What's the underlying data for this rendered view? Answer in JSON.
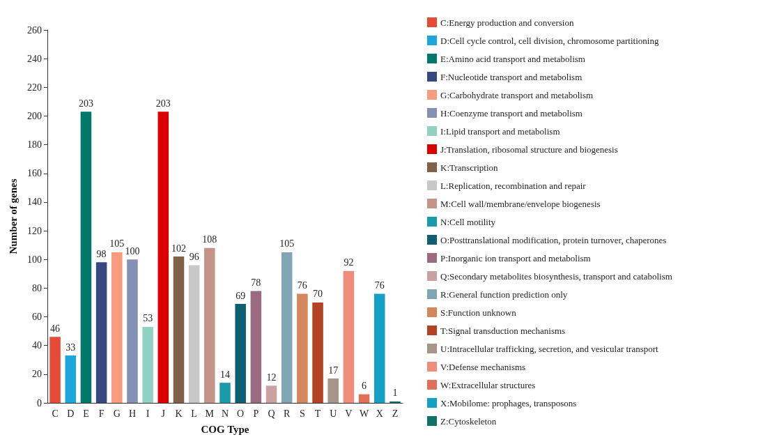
{
  "chart_data": {
    "type": "bar",
    "xlabel": "COG Type",
    "ylabel": "Number of genes",
    "categories": [
      "C",
      "D",
      "E",
      "F",
      "G",
      "H",
      "I",
      "J",
      "K",
      "L",
      "M",
      "N",
      "O",
      "P",
      "Q",
      "R",
      "S",
      "T",
      "U",
      "V",
      "W",
      "X",
      "Z"
    ],
    "series": [
      {
        "name": "C:Energy production and conversion",
        "color": "#e64b35",
        "values": [
          46,
          null,
          null,
          null,
          null,
          null,
          null,
          null,
          null,
          null,
          null,
          null,
          null,
          null,
          null,
          null,
          null,
          null,
          null,
          null,
          null,
          null,
          null
        ]
      },
      {
        "name": "D:Cell cycle control, cell division, chromosome partitioning",
        "color": "#1ba7d9",
        "values": [
          null,
          33,
          null,
          null,
          null,
          null,
          null,
          null,
          null,
          null,
          null,
          null,
          null,
          null,
          null,
          null,
          null,
          null,
          null,
          null,
          null,
          null,
          null
        ]
      },
      {
        "name": "E:Amino acid transport and metabolism",
        "color": "#00796b",
        "values": [
          null,
          null,
          203,
          null,
          null,
          null,
          null,
          null,
          null,
          null,
          null,
          null,
          null,
          null,
          null,
          null,
          null,
          null,
          null,
          null,
          null,
          null,
          null
        ]
      },
      {
        "name": "F:Nucleotide transport and metabolism",
        "color": "#34497d",
        "values": [
          null,
          null,
          null,
          98,
          null,
          null,
          null,
          null,
          null,
          null,
          null,
          null,
          null,
          null,
          null,
          null,
          null,
          null,
          null,
          null,
          null,
          null,
          null
        ]
      },
      {
        "name": "G:Carbohydrate transport and metabolism",
        "color": "#f99b7d",
        "values": [
          null,
          null,
          null,
          null,
          105,
          null,
          null,
          null,
          null,
          null,
          null,
          null,
          null,
          null,
          null,
          null,
          null,
          null,
          null,
          null,
          null,
          null,
          null
        ]
      },
      {
        "name": "H:Coenzyme transport and metabolism",
        "color": "#8491b4",
        "values": [
          null,
          null,
          null,
          null,
          null,
          100,
          null,
          null,
          null,
          null,
          null,
          null,
          null,
          null,
          null,
          null,
          null,
          null,
          null,
          null,
          null,
          null,
          null
        ]
      },
      {
        "name": "I:Lipid transport and metabolism",
        "color": "#91d1c2",
        "values": [
          null,
          null,
          null,
          null,
          null,
          null,
          53,
          null,
          null,
          null,
          null,
          null,
          null,
          null,
          null,
          null,
          null,
          null,
          null,
          null,
          null,
          null,
          null
        ]
      },
      {
        "name": "J:Translation, ribosomal structure and biogenesis",
        "color": "#dc0000",
        "values": [
          null,
          null,
          null,
          null,
          null,
          null,
          null,
          203,
          null,
          null,
          null,
          null,
          null,
          null,
          null,
          null,
          null,
          null,
          null,
          null,
          null,
          null,
          null
        ]
      },
      {
        "name": "K:Transcription",
        "color": "#7e6148",
        "values": [
          null,
          null,
          null,
          null,
          null,
          null,
          null,
          null,
          102,
          null,
          null,
          null,
          null,
          null,
          null,
          null,
          null,
          null,
          null,
          null,
          null,
          null,
          null
        ]
      },
      {
        "name": "L:Replication, recombination and repair",
        "color": "#c8c8c8",
        "values": [
          null,
          null,
          null,
          null,
          null,
          null,
          null,
          null,
          null,
          96,
          null,
          null,
          null,
          null,
          null,
          null,
          null,
          null,
          null,
          null,
          null,
          null,
          null
        ]
      },
      {
        "name": "M:Cell wall/membrane/envelope biogenesis",
        "color": "#c49488",
        "values": [
          null,
          null,
          null,
          null,
          null,
          null,
          null,
          null,
          null,
          null,
          108,
          null,
          null,
          null,
          null,
          null,
          null,
          null,
          null,
          null,
          null,
          null,
          null
        ]
      },
      {
        "name": "N:Cell motility",
        "color": "#1a9bab",
        "values": [
          null,
          null,
          null,
          null,
          null,
          null,
          null,
          null,
          null,
          null,
          null,
          14,
          null,
          null,
          null,
          null,
          null,
          null,
          null,
          null,
          null,
          null,
          null
        ]
      },
      {
        "name": "O:Posttranslational modification, protein turnover, chaperones",
        "color": "#0e5f73",
        "values": [
          null,
          null,
          null,
          null,
          null,
          null,
          null,
          null,
          null,
          null,
          null,
          null,
          69,
          null,
          null,
          null,
          null,
          null,
          null,
          null,
          null,
          null,
          null
        ]
      },
      {
        "name": "P:Inorganic ion transport and metabolism",
        "color": "#9a6b80",
        "values": [
          null,
          null,
          null,
          null,
          null,
          null,
          null,
          null,
          null,
          null,
          null,
          null,
          null,
          78,
          null,
          null,
          null,
          null,
          null,
          null,
          null,
          null,
          null
        ]
      },
      {
        "name": "Q:Secondary metabolites biosynthesis, transport and catabolism",
        "color": "#c9a1a1",
        "values": [
          null,
          null,
          null,
          null,
          null,
          null,
          null,
          null,
          null,
          null,
          null,
          null,
          null,
          null,
          12,
          null,
          null,
          null,
          null,
          null,
          null,
          null,
          null
        ]
      },
      {
        "name": "R:General function prediction only",
        "color": "#80a5b5",
        "values": [
          null,
          null,
          null,
          null,
          null,
          null,
          null,
          null,
          null,
          null,
          null,
          null,
          null,
          null,
          null,
          105,
          null,
          null,
          null,
          null,
          null,
          null,
          null
        ]
      },
      {
        "name": "S:Function unknown",
        "color": "#d4865c",
        "values": [
          null,
          null,
          null,
          null,
          null,
          null,
          null,
          null,
          null,
          null,
          null,
          null,
          null,
          null,
          null,
          null,
          76,
          null,
          null,
          null,
          null,
          null,
          null
        ]
      },
      {
        "name": "T:Signal transduction mechanisms",
        "color": "#b34325",
        "values": [
          null,
          null,
          null,
          null,
          null,
          null,
          null,
          null,
          null,
          null,
          null,
          null,
          null,
          null,
          null,
          null,
          null,
          70,
          null,
          null,
          null,
          null,
          null
        ]
      },
      {
        "name": "U:Intracellular trafficking, secretion, and vesicular transport",
        "color": "#a6968a",
        "values": [
          null,
          null,
          null,
          null,
          null,
          null,
          null,
          null,
          null,
          null,
          null,
          null,
          null,
          null,
          null,
          null,
          null,
          null,
          17,
          null,
          null,
          null,
          null
        ]
      },
      {
        "name": "V:Defense mechanisms",
        "color": "#f08c7a",
        "values": [
          null,
          null,
          null,
          null,
          null,
          null,
          null,
          null,
          null,
          null,
          null,
          null,
          null,
          null,
          null,
          null,
          null,
          null,
          null,
          92,
          null,
          null,
          null
        ]
      },
      {
        "name": "W:Extracellular structures",
        "color": "#e0705a",
        "values": [
          null,
          null,
          null,
          null,
          null,
          null,
          null,
          null,
          null,
          null,
          null,
          null,
          null,
          null,
          null,
          null,
          null,
          null,
          null,
          null,
          6,
          null,
          null
        ]
      },
      {
        "name": "X:Mobilome: prophages, transposons",
        "color": "#14a0c4",
        "values": [
          null,
          null,
          null,
          null,
          null,
          null,
          null,
          null,
          null,
          null,
          null,
          null,
          null,
          null,
          null,
          null,
          null,
          null,
          null,
          null,
          null,
          76,
          null
        ]
      },
      {
        "name": "Z:Cytoskeleton",
        "color": "#137068",
        "values": [
          null,
          null,
          null,
          null,
          null,
          null,
          null,
          null,
          null,
          null,
          null,
          null,
          null,
          null,
          null,
          null,
          null,
          null,
          null,
          null,
          null,
          null,
          1
        ]
      }
    ],
    "ylim": [
      0,
      260
    ],
    "yticks": [
      0,
      20,
      40,
      60,
      80,
      100,
      120,
      140,
      160,
      180,
      200,
      220,
      240,
      260
    ],
    "data_labels": true,
    "legend": "right",
    "grid": false
  }
}
